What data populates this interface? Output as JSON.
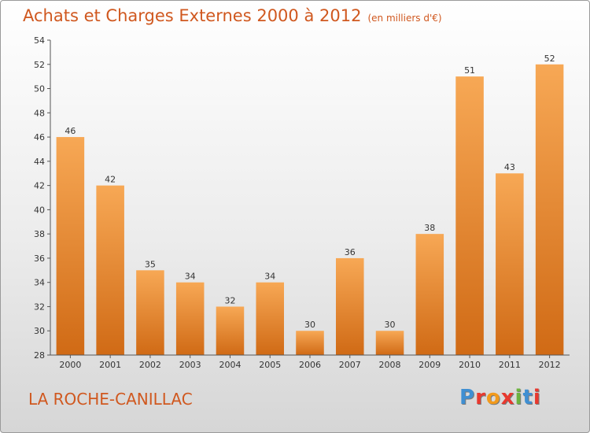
{
  "header": {
    "title": "Achats et Charges Externes 2000 à 2012",
    "subtitle": "(en milliers d'€)"
  },
  "footer": {
    "city": "LA ROCHE-CANILLAC",
    "logo_text": "Proxiti"
  },
  "colors": {
    "bar_light": "#f7a855",
    "bar_dark": "#d06a15",
    "title": "#d0581f",
    "axis": "#555555",
    "logo": [
      "#3f8fd2",
      "#e8392f",
      "#f29a1c",
      "#e8392f",
      "#6cb33f",
      "#3f8fd2",
      "#e8392f"
    ]
  },
  "chart_data": {
    "type": "bar",
    "title": "Achats et Charges Externes 2000 à 2012",
    "subtitle": "(en milliers d'€)",
    "categories": [
      "2000",
      "2001",
      "2002",
      "2003",
      "2004",
      "2005",
      "2006",
      "2007",
      "2008",
      "2009",
      "2010",
      "2011",
      "2012"
    ],
    "values": [
      46,
      42,
      35,
      34,
      32,
      34,
      30,
      36,
      30,
      38,
      51,
      43,
      52
    ],
    "ylim": [
      28,
      54
    ],
    "yticks": [
      28,
      30,
      32,
      34,
      36,
      38,
      40,
      42,
      44,
      46,
      48,
      50,
      52,
      54
    ],
    "grid": false,
    "legend": "none"
  }
}
